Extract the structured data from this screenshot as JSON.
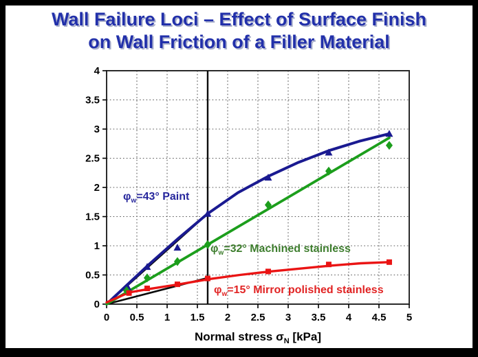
{
  "title": {
    "line1": "Wall Failure Loci – Effect of Surface Finish",
    "line2": "on Wall Friction of a Filler Material",
    "color": "#2230aa"
  },
  "chart_data": {
    "type": "line",
    "title": "Wall Failure Loci – Effect of Surface Finish on Wall Friction of a Filler Material",
    "xlabel_parts": {
      "pre": "Normal stress ",
      "sym": "σ",
      "sub": "N",
      "post": " [kPa]"
    },
    "ylabel": "",
    "xlim": [
      0,
      5
    ],
    "ylim": [
      0,
      4
    ],
    "grid": "dotted",
    "grid_step": 0.5,
    "legend_position": "inline-labels",
    "x_ticks": [
      "0",
      "0.5",
      "1",
      "1.5",
      "2",
      "2.5",
      "3",
      "3.5",
      "4",
      "4.5",
      "5"
    ],
    "y_ticks": [
      "0",
      "0.5",
      "1",
      "1.5",
      "2",
      "2.5",
      "3",
      "3.5",
      "4"
    ],
    "series": [
      {
        "name": "paint",
        "label": {
          "phi": "φ",
          "sub": "w",
          "rest": "=43° Paint"
        },
        "wall_friction_angle_deg": 43,
        "color": "#1a1a91",
        "label_color": "#26269c",
        "marker": "triangle",
        "points": [
          [
            0.35,
            0.29
          ],
          [
            0.67,
            0.64
          ],
          [
            1.17,
            0.97
          ],
          [
            1.67,
            1.55
          ],
          [
            2.67,
            2.17
          ],
          [
            3.67,
            2.6
          ],
          [
            4.67,
            2.92
          ]
        ],
        "trend": [
          [
            0,
            0
          ],
          [
            0.35,
            0.34
          ],
          [
            0.7,
            0.68
          ],
          [
            1.2,
            1.14
          ],
          [
            1.67,
            1.55
          ],
          [
            2.17,
            1.91
          ],
          [
            2.67,
            2.19
          ],
          [
            3.17,
            2.43
          ],
          [
            3.67,
            2.63
          ],
          [
            4.17,
            2.79
          ],
          [
            4.67,
            2.92
          ]
        ]
      },
      {
        "name": "machined-stainless",
        "label": {
          "phi": "φ",
          "sub": "w",
          "rest": "=32° Machined stainless"
        },
        "wall_friction_angle_deg": 32,
        "color": "#1c9e1c",
        "label_color": "#3d7d2d",
        "marker": "diamond",
        "points": [
          [
            0.33,
            0.23
          ],
          [
            0.67,
            0.45
          ],
          [
            1.17,
            0.73
          ],
          [
            1.67,
            1.02
          ],
          [
            2.67,
            1.7
          ],
          [
            3.67,
            2.28
          ],
          [
            4.67,
            2.72
          ]
        ],
        "trend": [
          [
            0,
            0
          ],
          [
            4.67,
            2.85
          ]
        ]
      },
      {
        "name": "mirror-polished-stainless",
        "label": {
          "phi": "φ",
          "sub": "w",
          "rest": "=15° Mirror polished stainless"
        },
        "wall_friction_angle_deg": 15,
        "color": "#ea1414",
        "label_color": "#e12323",
        "marker": "square",
        "points": [
          [
            0.37,
            0.19
          ],
          [
            0.67,
            0.27
          ],
          [
            1.17,
            0.34
          ],
          [
            1.67,
            0.44
          ],
          [
            2.67,
            0.56
          ],
          [
            3.67,
            0.68
          ],
          [
            4.67,
            0.72
          ]
        ],
        "trend": [
          [
            0,
            0.03
          ],
          [
            0.37,
            0.2
          ],
          [
            0.7,
            0.26
          ],
          [
            1.2,
            0.34
          ],
          [
            1.7,
            0.43
          ],
          [
            2.2,
            0.5
          ],
          [
            2.7,
            0.56
          ],
          [
            3.2,
            0.61
          ],
          [
            3.7,
            0.66
          ],
          [
            4.2,
            0.7
          ],
          [
            4.67,
            0.72
          ]
        ]
      }
    ],
    "reference_lines": [
      {
        "name": "friction-angle-43-line",
        "type": "segment",
        "from": [
          0,
          0
        ],
        "to": [
          1.67,
          1.55
        ]
      },
      {
        "name": "friction-angle-15-line",
        "type": "segment",
        "from": [
          0,
          0
        ],
        "to": [
          1.67,
          0.45
        ]
      },
      {
        "name": "vertical-marker-line",
        "type": "vertical",
        "x": 1.67
      }
    ]
  }
}
